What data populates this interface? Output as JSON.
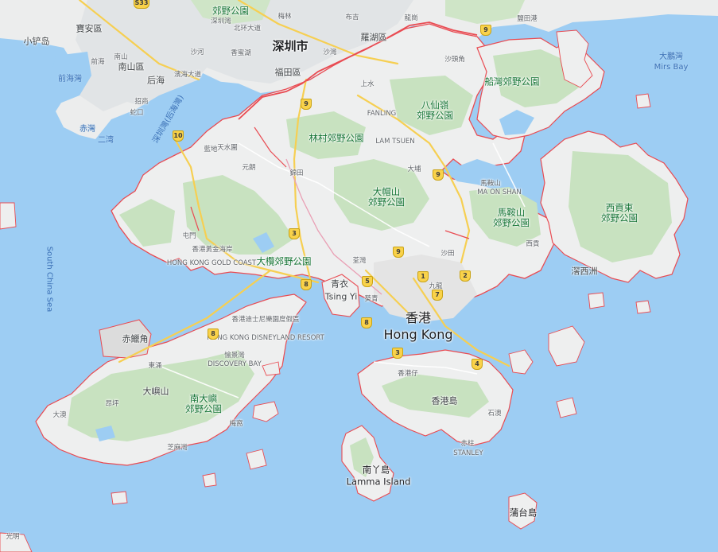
{
  "map": {
    "colors": {
      "water": "#9dcdf3",
      "land": "#f1f3f4",
      "park": "#c8e2c0",
      "urban": "#e8e8e8",
      "boundary": "#e94b52",
      "highway": "#f6cf52"
    },
    "labels": {
      "shenzhen": "深圳市",
      "baoan": "寶安區",
      "xiaochan": "小铲岛",
      "qianhai_wan": "前海灣",
      "qianhai": "前海",
      "chiwan": "赤灣",
      "erwan": "二湾",
      "houhai": "后海",
      "nanshan": "南山區",
      "shekou": "蛇口",
      "zhaoshang": "招商",
      "futian": "福田區",
      "luohu": "羅湖區",
      "longgang": "龍崗",
      "luohu_park": "郊野公園",
      "shenzhen_wan": "深圳灣(后海灣)",
      "shatoujiao": "沙頭角",
      "sheung_shui": "上水",
      "fanling": "FANLING",
      "lam_tsuen": "LAM TSUEN",
      "tin_shui_wai": "天水圍",
      "yuen_long": "元朗",
      "kam_tin": "錦田",
      "tai_po": "大埔",
      "ma_on_shan_town": "MA ON SHAN",
      "ma_on_shan_cn": "馬鞍山",
      "tuen_mun": "屯門",
      "gold_coast_cn": "香港黃金海岸",
      "gold_coast_en": "HONG KONG GOLD COAST",
      "tsing_yi_cn": "青衣",
      "tsing_yi_en": "Tsing Yi",
      "hong_kong_cn": "香港",
      "hong_kong_en": "Hong Kong",
      "hk_island": "香港島",
      "sai_kung": "西貢",
      "sharp_island": "滘西洲",
      "chek_lap_kok": "赤鱲角",
      "lantau": "大嶼山",
      "tung_chung": "東涌",
      "ngong_ping": "昂坪",
      "disney_cn": "香港迪士尼樂園度假區",
      "disney_en": "HONG KONG DISNEYLAND RESORT",
      "discovery_cn": "愉景灣",
      "discovery_en": "DISCOVERY BAY",
      "lamma_cn": "南丫島",
      "lamma_en": "Lamma Island",
      "po_toi": "蒲台島",
      "stanley_cn": "赤柱",
      "stanley_en": "STANLEY",
      "kwai_tsing": "葵青",
      "sha_tin": "沙田",
      "mirs_bay_cn": "大鵬灣",
      "mirs_bay_en": "Mirs Bay",
      "south_china_sea": "South China Sea",
      "yantian": "鹽田港",
      "guangming": "光明",
      "lam_tei": "藍地",
      "chuen_lung": "荃灣",
      "shek_o": "石澳",
      "aberdeen": "香港仔",
      "mui_wo": "梅窩",
      "kowloon": "九龍",
      "lo_wu": "沙灣",
      "xiangmi": "香蜜湖",
      "meilin": "梅林",
      "buji": "布吉",
      "nanshan_small": "南山",
      "shahe": "沙河",
      "pinghai": "濱海大道",
      "north_ring": "北环大道",
      "shekou_small": "深圳灣",
      "tai_o": "大澳",
      "chi_ma_wan": "芝麻灣"
    },
    "parks": {
      "tai_mo_shan": "大帽山\n郊野公園",
      "lam_tsuen_park": "林村郊野公園",
      "pat_sin_leng": "八仙嶺\n郊野公園",
      "plover_cove": "船灣郊野公園",
      "ma_on_shan": "馬鞍山\n郊野公園",
      "sai_kung_east": "西貢東\n郊野公園",
      "tai_lam": "大欖郊野公園",
      "south_lantau": "南大嶼\n郊野公園",
      "meilin_park": "郊野公園"
    },
    "roads": [
      "1",
      "2",
      "3",
      "4",
      "5",
      "7",
      "8",
      "8",
      "8",
      "9",
      "9",
      "9",
      "9",
      "10",
      "S33",
      "3"
    ]
  }
}
